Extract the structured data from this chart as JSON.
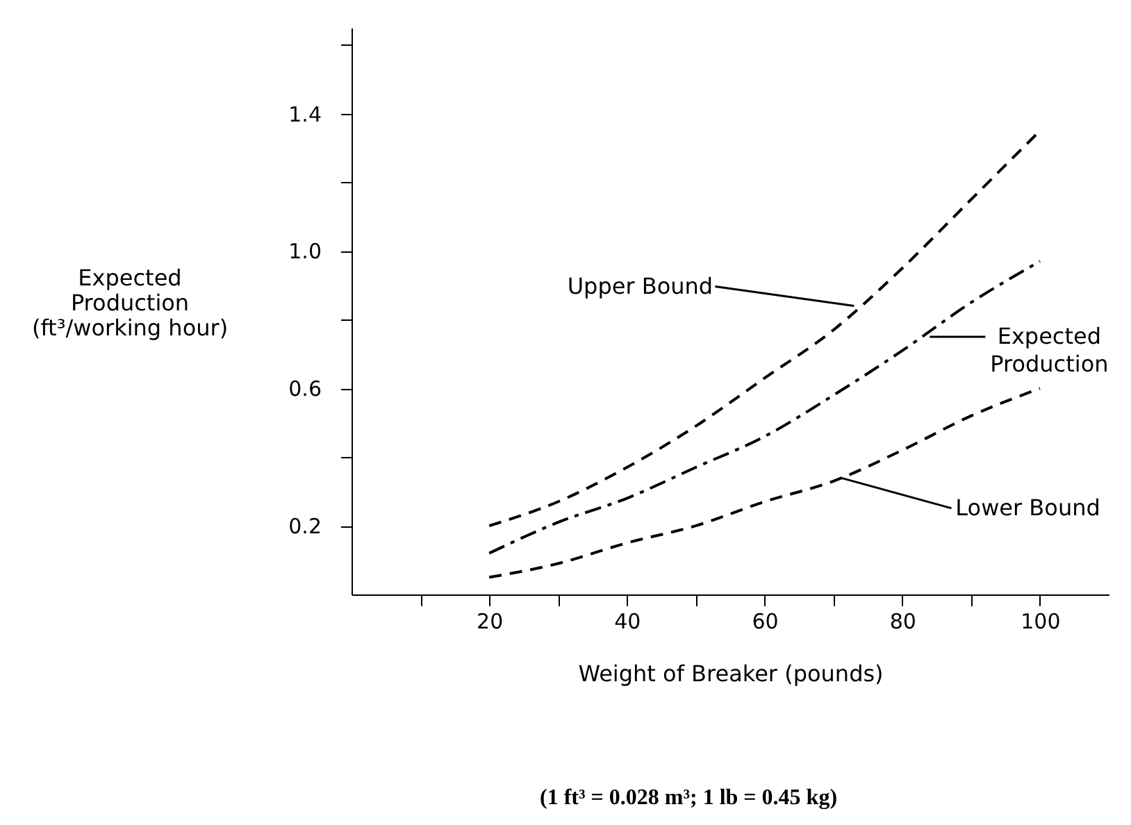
{
  "chart_data": {
    "type": "line",
    "xlabel": "Weight of Breaker (pounds)",
    "ylabel": "Expected\nProduction\n(ft³/working hour)",
    "x": [
      20,
      30,
      40,
      50,
      60,
      70,
      80,
      90,
      100
    ],
    "series": [
      {
        "color": "#000000",
        "line_style": "dashed",
        "values": [
          0.2,
          0.27,
          0.37,
          0.49,
          0.63,
          0.77,
          0.95,
          1.15,
          1.35
        ]
      },
      {
        "color": "#000000",
        "line_style": "dashdot",
        "values": [
          0.12,
          0.21,
          0.28,
          0.37,
          0.46,
          0.58,
          0.71,
          0.85,
          0.97
        ]
      },
      {
        "color": "#000000",
        "line_style": "dashed",
        "values": [
          0.05,
          0.09,
          0.15,
          0.2,
          0.27,
          0.33,
          0.42,
          0.52,
          0.6
        ]
      }
    ],
    "xlim": [
      0,
      110
    ],
    "xticks": [
      {
        "value": 10,
        "label": null
      },
      20,
      {
        "value": 30,
        "label": null
      },
      40,
      {
        "value": 50,
        "label": null
      },
      60,
      {
        "value": 70,
        "label": null
      },
      80,
      {
        "value": 90,
        "label": null
      },
      100
    ],
    "ylim": [
      0,
      1.65
    ],
    "yticks": [
      {
        "value": 0.2,
        "label": "0.2"
      },
      {
        "value": 0.4,
        "label": null
      },
      {
        "value": 0.6,
        "label": "0.6"
      },
      {
        "value": 0.8,
        "label": null
      },
      {
        "value": 1.0,
        "label": "1.0"
      },
      {
        "value": 1.2,
        "label": null
      },
      {
        "value": 1.4,
        "label": "1.4"
      },
      {
        "value": 1.6,
        "label": null
      }
    ],
    "grid": false,
    "marker": "none",
    "annotations": [
      {
        "text": "Upper Bound",
        "x": 73,
        "y": 0.84
      },
      {
        "text": "Expected Production",
        "x": 84,
        "y": 0.75
      },
      {
        "text": "Lower Bound",
        "x": 71,
        "y": 0.34
      },
      "(1 ft³ = 0.028 m³; 1 lb = 0.45 kg)"
    ]
  }
}
